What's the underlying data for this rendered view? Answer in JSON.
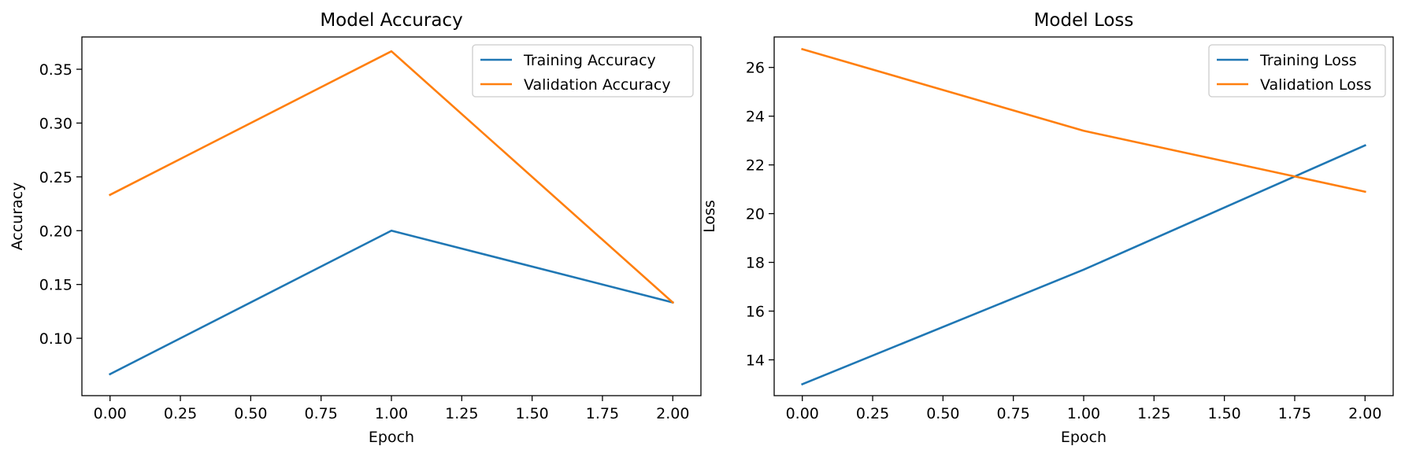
{
  "chart_data": [
    {
      "type": "line",
      "title": "Model Accuracy",
      "xlabel": "Epoch",
      "ylabel": "Accuracy",
      "x": [
        0,
        1,
        2
      ],
      "xticks": [
        "0.00",
        "0.25",
        "0.50",
        "0.75",
        "1.00",
        "1.25",
        "1.50",
        "1.75",
        "2.00"
      ],
      "xtick_values": [
        0,
        0.25,
        0.5,
        0.75,
        1.0,
        1.25,
        1.5,
        1.75,
        2.0
      ],
      "yticks": [
        "0.10",
        "0.15",
        "0.20",
        "0.25",
        "0.30",
        "0.35"
      ],
      "ytick_values": [
        0.1,
        0.15,
        0.2,
        0.25,
        0.3,
        0.35
      ],
      "xlim": [
        -0.1,
        2.1
      ],
      "ylim": [
        0.0467,
        0.38
      ],
      "grid": false,
      "legend_position": "top-right",
      "series": [
        {
          "name": "Training Accuracy",
          "color": "#1f77b4",
          "values": [
            0.0667,
            0.2,
            0.1333
          ]
        },
        {
          "name": "Validation Accuracy",
          "color": "#ff7f0e",
          "values": [
            0.2333,
            0.3667,
            0.1333
          ]
        }
      ]
    },
    {
      "type": "line",
      "title": "Model Loss",
      "xlabel": "Epoch",
      "ylabel": "Loss",
      "x": [
        0,
        1,
        2
      ],
      "xticks": [
        "0.00",
        "0.25",
        "0.50",
        "0.75",
        "1.00",
        "1.25",
        "1.50",
        "1.75",
        "2.00"
      ],
      "xtick_values": [
        0,
        0.25,
        0.5,
        0.75,
        1.0,
        1.25,
        1.5,
        1.75,
        2.0
      ],
      "yticks": [
        "14",
        "16",
        "18",
        "20",
        "22",
        "24",
        "26"
      ],
      "ytick_values": [
        14,
        16,
        18,
        20,
        22,
        24,
        26
      ],
      "xlim": [
        -0.1,
        2.1
      ],
      "ylim": [
        12.53,
        27.25
      ],
      "grid": false,
      "legend_position": "top-right",
      "series": [
        {
          "name": "Training Loss",
          "color": "#1f77b4",
          "values": [
            13.0,
            17.7,
            22.8
          ]
        },
        {
          "name": "Validation Loss",
          "color": "#ff7f0e",
          "values": [
            26.75,
            23.4,
            20.9
          ]
        }
      ]
    }
  ]
}
